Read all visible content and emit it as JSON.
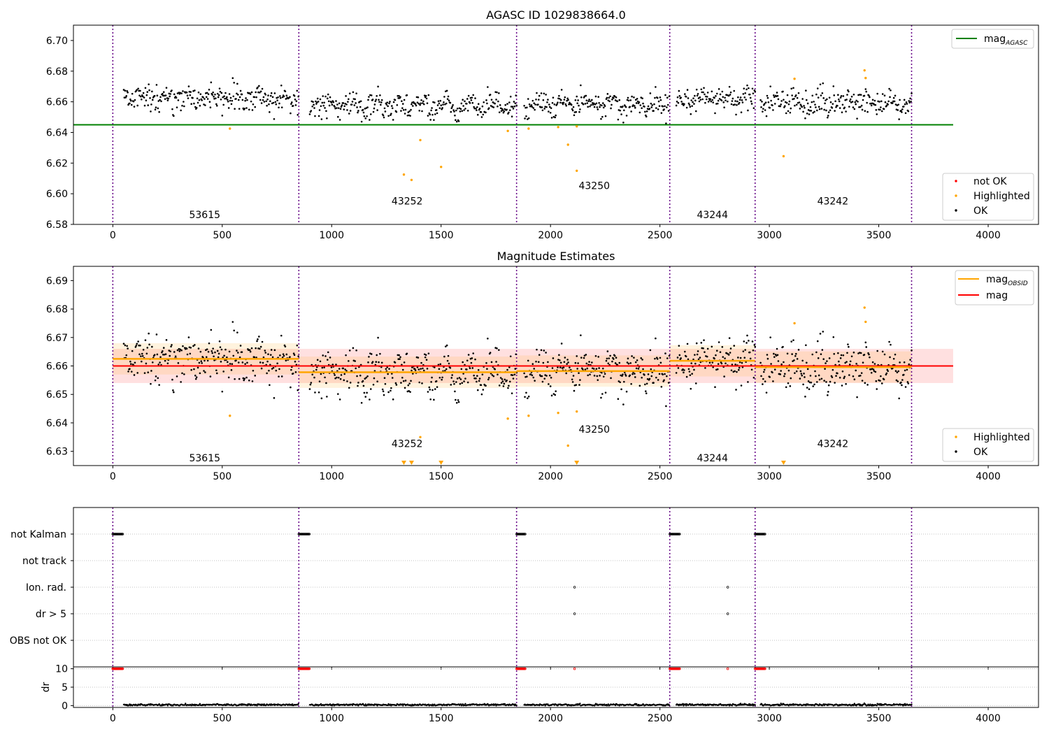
{
  "chart_data": [
    {
      "type": "scatter",
      "title": "AGASC ID 1029838664.0",
      "xlabel": "",
      "ylabel": "",
      "xlim": [
        -180,
        4230
      ],
      "ylim": [
        6.58,
        6.71
      ],
      "grid": false,
      "xticks": [
        0,
        500,
        1000,
        1500,
        2000,
        2500,
        3000,
        3500,
        4000
      ],
      "yticks": [
        6.58,
        6.6,
        6.62,
        6.64,
        6.66,
        6.68,
        6.7
      ],
      "ytick_labels": [
        "6.58",
        "6.60",
        "6.62",
        "6.64",
        "6.66",
        "6.68",
        "6.70"
      ],
      "line_legend": {
        "position": "top-right",
        "entries": [
          {
            "label": "mag",
            "sub": "AGASC",
            "color": "#008000"
          }
        ]
      },
      "point_legend": {
        "position": "bottom-right",
        "entries": [
          {
            "label": "not OK",
            "color": "#ff0000"
          },
          {
            "label": "Highlighted",
            "color": "#ffa500"
          },
          {
            "label": "OK",
            "color": "#000000"
          }
        ]
      },
      "mag_agasc": {
        "value": 6.645,
        "x_range": [
          -180,
          3840
        ],
        "color": "#008000"
      },
      "obsid_boundaries": [
        0,
        850,
        1845,
        2545,
        2935,
        3650
      ],
      "obsid_labels": [
        {
          "text": "53615",
          "x": 420,
          "y": 6.584
        },
        {
          "text": "43252",
          "x": 1345,
          "y": 6.593
        },
        {
          "text": "43250",
          "x": 2200,
          "y": 6.603
        },
        {
          "text": "43244",
          "x": 2740,
          "y": 6.584
        },
        {
          "text": "43242",
          "x": 3290,
          "y": 6.593
        }
      ],
      "segments": [
        {
          "start": 50,
          "end": 850,
          "center": 6.6625,
          "spread": 0.0048
        },
        {
          "start": 900,
          "end": 1845,
          "center": 6.6575,
          "spread": 0.0048
        },
        {
          "start": 1880,
          "end": 2545,
          "center": 6.658,
          "spread": 0.0045
        },
        {
          "start": 2575,
          "end": 2935,
          "center": 6.6615,
          "spread": 0.0048
        },
        {
          "start": 2960,
          "end": 3650,
          "center": 6.6595,
          "spread": 0.0048
        }
      ],
      "highlighted": [
        {
          "x": 535,
          "y": 6.6425
        },
        {
          "x": 1330,
          "y": 6.6125
        },
        {
          "x": 1365,
          "y": 6.609
        },
        {
          "x": 1405,
          "y": 6.635
        },
        {
          "x": 1500,
          "y": 6.6175
        },
        {
          "x": 1805,
          "y": 6.641
        },
        {
          "x": 1900,
          "y": 6.6425
        },
        {
          "x": 2035,
          "y": 6.6435
        },
        {
          "x": 2080,
          "y": 6.632
        },
        {
          "x": 2120,
          "y": 6.644
        },
        {
          "x": 2120,
          "y": 6.615
        },
        {
          "x": 3065,
          "y": 6.6245
        },
        {
          "x": 3115,
          "y": 6.675
        },
        {
          "x": 3435,
          "y": 6.6805
        },
        {
          "x": 3440,
          "y": 6.6755
        }
      ]
    },
    {
      "type": "scatter",
      "title": "Magnitude Estimates",
      "xlabel": "",
      "ylabel": "",
      "xlim": [
        -180,
        4230
      ],
      "ylim": [
        6.625,
        6.695
      ],
      "grid": false,
      "xticks": [
        0,
        500,
        1000,
        1500,
        2000,
        2500,
        3000,
        3500,
        4000
      ],
      "yticks": [
        6.63,
        6.64,
        6.65,
        6.66,
        6.67,
        6.68,
        6.69
      ],
      "ytick_labels": [
        "6.63",
        "6.64",
        "6.65",
        "6.66",
        "6.67",
        "6.68",
        "6.69"
      ],
      "line_legend": {
        "position": "top-right",
        "entries": [
          {
            "label": "mag",
            "sub": "OBSID",
            "color": "#ffa500"
          },
          {
            "label": "mag",
            "sub": "",
            "color": "#ff0000"
          }
        ]
      },
      "point_legend": {
        "position": "bottom-right",
        "entries": [
          {
            "label": "Highlighted",
            "color": "#ffa500"
          },
          {
            "label": "OK",
            "color": "#000000"
          }
        ]
      },
      "mag": {
        "value": 6.66,
        "band": [
          6.654,
          6.666
        ],
        "x_range": [
          0,
          3840
        ],
        "color": "#ff0000"
      },
      "mag_obsid": [
        {
          "start": 0,
          "end": 850,
          "value": 6.6625
        },
        {
          "start": 850,
          "end": 1845,
          "value": 6.6578
        },
        {
          "start": 1845,
          "end": 2545,
          "value": 6.6582
        },
        {
          "start": 2545,
          "end": 2935,
          "value": 6.6618
        },
        {
          "start": 2935,
          "end": 3650,
          "value": 6.6596
        }
      ],
      "obsid_boundaries": [
        0,
        850,
        1845,
        2545,
        2935,
        3650
      ],
      "obsid_labels": [
        {
          "text": "53615",
          "x": 420,
          "y": 6.6265
        },
        {
          "text": "43252",
          "x": 1345,
          "y": 6.6315
        },
        {
          "text": "43250",
          "x": 2200,
          "y": 6.6365
        },
        {
          "text": "43244",
          "x": 2740,
          "y": 6.6265
        },
        {
          "text": "43242",
          "x": 3290,
          "y": 6.6315
        }
      ],
      "highlighted": [
        {
          "x": 535,
          "y": 6.6425
        },
        {
          "x": 1405,
          "y": 6.635
        },
        {
          "x": 1805,
          "y": 6.6415
        },
        {
          "x": 1900,
          "y": 6.6425
        },
        {
          "x": 2035,
          "y": 6.6435
        },
        {
          "x": 2080,
          "y": 6.632
        },
        {
          "x": 2120,
          "y": 6.644
        },
        {
          "x": 3115,
          "y": 6.675
        },
        {
          "x": 3435,
          "y": 6.6805
        },
        {
          "x": 3440,
          "y": 6.6755
        }
      ],
      "offscale_low": [
        1330,
        1365,
        1500,
        2120,
        3065
      ]
    },
    {
      "type": "scatter",
      "title": "",
      "xlim": [
        -180,
        4230
      ],
      "xticks": [
        0,
        500,
        1000,
        1500,
        2000,
        2500,
        3000,
        3500,
        4000
      ],
      "flag_rows": [
        "not Kalman",
        "not track",
        "Ion. rad.",
        "dr > 5",
        "OBS not OK"
      ],
      "flags": [
        {
          "row": "not Kalman",
          "x_ranges": [
            [
              0,
              45
            ],
            [
              850,
              900
            ],
            [
              1845,
              1885
            ],
            [
              2545,
              2590
            ],
            [
              2935,
              2980
            ]
          ]
        },
        {
          "row": "Ion. rad.",
          "points": [
            2110,
            2810
          ]
        },
        {
          "row": "dr > 5",
          "points": [
            2110,
            2810
          ]
        }
      ],
      "obsid_boundaries": [
        0,
        850,
        1845,
        2545,
        2935,
        3650
      ]
    },
    {
      "type": "scatter",
      "title": "",
      "ylabel": "dr",
      "xlim": [
        -180,
        4230
      ],
      "ylim": [
        -0.5,
        10.5
      ],
      "xticks": [
        0,
        500,
        1000,
        1500,
        2000,
        2500,
        3000,
        3500,
        4000
      ],
      "yticks": [
        0,
        5,
        10
      ],
      "ytick_labels": [
        "0",
        "5",
        "10"
      ],
      "grid": true,
      "dr_max_x_ranges": [
        [
          0,
          45
        ],
        [
          850,
          900
        ],
        [
          1845,
          1885
        ],
        [
          2545,
          2590
        ],
        [
          2935,
          2980
        ]
      ],
      "dr_max_points": [
        2110,
        2810
      ],
      "dr_typical": 0.2,
      "obsid_boundaries": [
        0,
        850,
        1845,
        2545,
        2935,
        3650
      ]
    }
  ]
}
